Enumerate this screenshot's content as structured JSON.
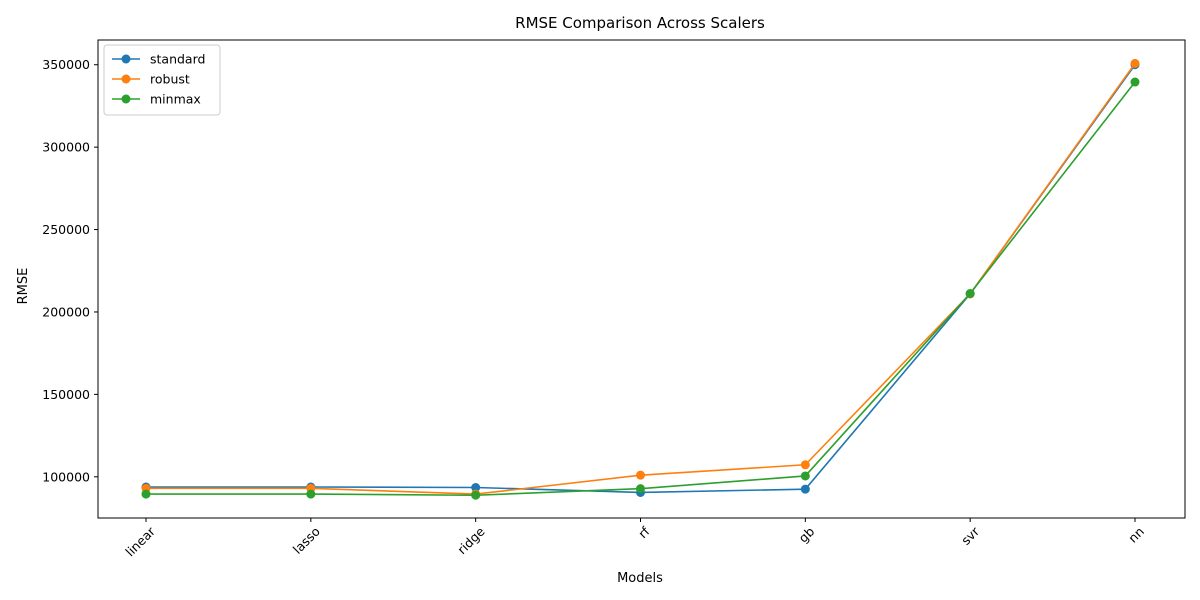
{
  "chart_data": {
    "type": "line",
    "title": "RMSE Comparison Across Scalers",
    "xlabel": "Models",
    "ylabel": "RMSE",
    "categories": [
      "linear",
      "lasso",
      "ridge",
      "rf",
      "gb",
      "svr",
      "nn"
    ],
    "ylim": [
      75000,
      365000
    ],
    "yticks": [
      100000,
      150000,
      200000,
      250000,
      300000,
      350000
    ],
    "grid": false,
    "legend_position": "top-left",
    "series": [
      {
        "name": "standard",
        "color": "#1f77b4",
        "values": [
          93800,
          93800,
          93500,
          90500,
          92500,
          211000,
          350000
        ]
      },
      {
        "name": "robust",
        "color": "#ff7f0e",
        "values": [
          93000,
          93000,
          89500,
          101000,
          107300,
          211000,
          350800
        ]
      },
      {
        "name": "minmax",
        "color": "#2ca02c",
        "values": [
          89500,
          89500,
          88800,
          92800,
          100500,
          211200,
          339500
        ]
      }
    ]
  }
}
